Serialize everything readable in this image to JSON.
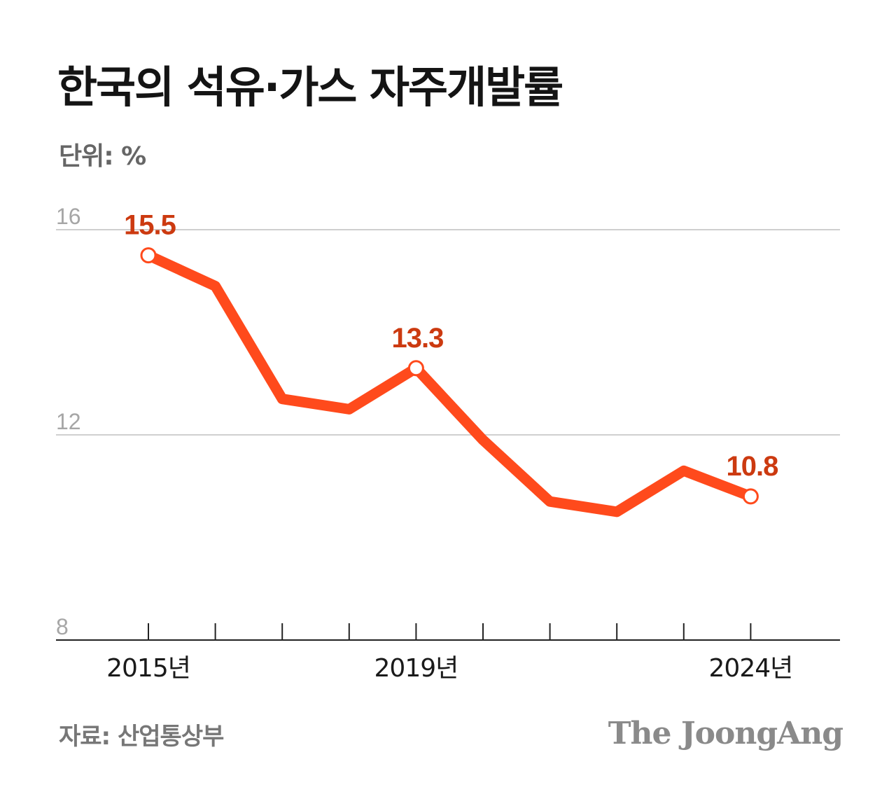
{
  "title": "한국의 석유·가스 자주개발률",
  "unit_label": "단위: %",
  "source": "자료: 산업통상부",
  "logo": "The JoongAng",
  "colors": {
    "line": "#ff4a1c",
    "label": "#cc3a10",
    "grid": "#cfcfcf",
    "axis": "#222222"
  },
  "chart_data": {
    "type": "line",
    "x": [
      2015,
      2016,
      2017,
      2018,
      2019,
      2020,
      2021,
      2022,
      2023,
      2024
    ],
    "x_tick_labels": [
      {
        "x": 2015,
        "label": "2015년"
      },
      {
        "x": 2019,
        "label": "2019년"
      },
      {
        "x": 2024,
        "label": "2024년"
      }
    ],
    "series": [
      {
        "values": [
          15.5,
          14.9,
          12.7,
          12.5,
          13.3,
          11.9,
          10.7,
          10.5,
          11.3,
          10.8
        ]
      }
    ],
    "data_labels": [
      {
        "x": 2015,
        "text": "15.5"
      },
      {
        "x": 2019,
        "text": "13.3"
      },
      {
        "x": 2024,
        "text": "10.8"
      }
    ],
    "y_ticks": [
      16,
      12,
      8
    ],
    "ylim": [
      8,
      16
    ],
    "xlim": [
      2014,
      2025.4
    ],
    "grid": true,
    "legend": "none"
  }
}
